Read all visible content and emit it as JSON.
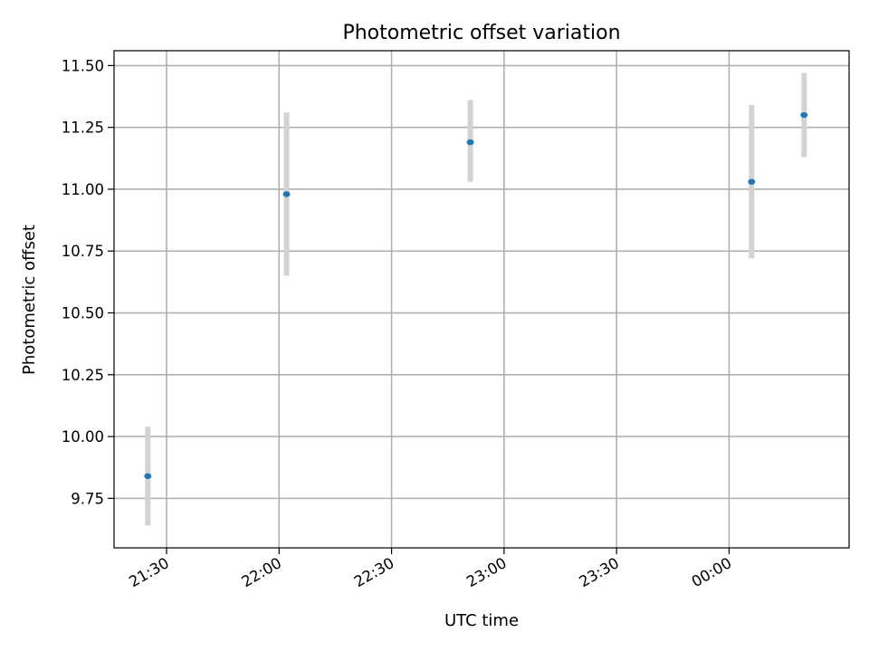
{
  "chart_data": {
    "type": "scatter",
    "title": "Photometric offset variation",
    "xlabel": "UTC time",
    "ylabel": "Photometric offset",
    "x_ticks": [
      "21:30",
      "22:00",
      "22:30",
      "23:00",
      "23:30",
      "00:00"
    ],
    "y_ticks": [
      "9.75",
      "10.00",
      "10.25",
      "10.50",
      "10.75",
      "11.00",
      "11.25",
      "11.50"
    ],
    "xlim": [
      "21:16",
      "00:32"
    ],
    "ylim": [
      9.55,
      11.56
    ],
    "grid": true,
    "errorbar_color": "#d3d3d3",
    "marker_color": "#1f77b4",
    "points": [
      {
        "time": "21:25",
        "y": 9.84,
        "yerr_low": 9.64,
        "yerr_high": 10.04
      },
      {
        "time": "22:02",
        "y": 10.98,
        "yerr_low": 10.65,
        "yerr_high": 11.31
      },
      {
        "time": "22:51",
        "y": 11.19,
        "yerr_low": 11.03,
        "yerr_high": 11.36
      },
      {
        "time": "00:06",
        "y": 11.03,
        "yerr_low": 10.72,
        "yerr_high": 11.34
      },
      {
        "time": "00:20",
        "y": 11.3,
        "yerr_low": 11.13,
        "yerr_high": 11.47
      }
    ]
  }
}
